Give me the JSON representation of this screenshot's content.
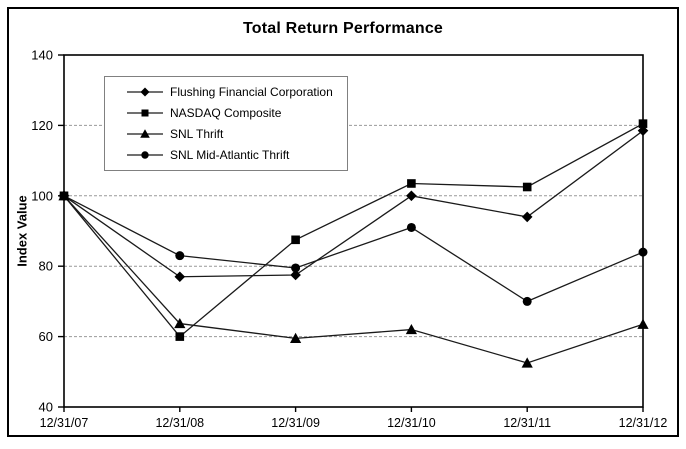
{
  "chart_data": {
    "type": "line",
    "title": "Total Return Performance",
    "ylabel": "Index Value",
    "xlabel": "",
    "x_labels": [
      "12/31/07",
      "12/31/08",
      "12/31/09",
      "12/31/10",
      "12/31/11",
      "12/31/12"
    ],
    "ylim": [
      40,
      140
    ],
    "yticks": [
      40,
      60,
      80,
      100,
      120,
      140
    ],
    "grid_yticks": [
      60,
      80,
      100,
      120
    ],
    "grid": "dashed-horizontal",
    "legend_position": "top-left-inside",
    "series": [
      {
        "name": "Flushing Financial Corporation",
        "marker": "diamond",
        "values": [
          100,
          77,
          77.5,
          100,
          94,
          118.5
        ]
      },
      {
        "name": "NASDAQ Composite",
        "marker": "square",
        "values": [
          100,
          60,
          87.5,
          103.5,
          102.5,
          120.5
        ]
      },
      {
        "name": "SNL Thrift",
        "marker": "triangle",
        "values": [
          100,
          63.7,
          59.5,
          62,
          52.5,
          63.5
        ]
      },
      {
        "name": "SNL Mid-Atlantic Thrift",
        "marker": "circle",
        "values": [
          100,
          83,
          79.5,
          91,
          70,
          84
        ]
      }
    ],
    "colors": {
      "line": "#1a1a1a",
      "marker": "#000000",
      "grid": "#999999",
      "frame": "#000000",
      "legend_border": "#808080",
      "background": "#ffffff"
    }
  }
}
